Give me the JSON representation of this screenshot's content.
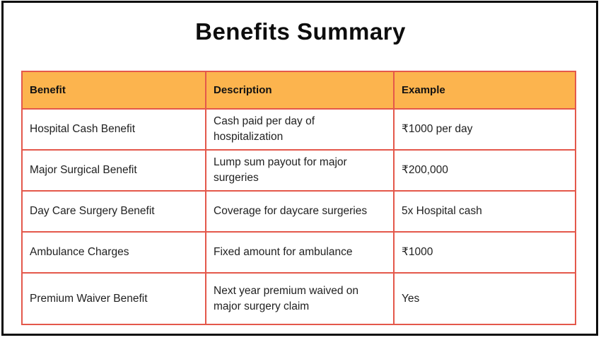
{
  "page": {
    "title": "Benefits Summary"
  },
  "table": {
    "columns": [
      "Benefit",
      "Description",
      "Example"
    ],
    "rows": [
      {
        "benefit": "Hospital Cash Benefit",
        "description": "Cash paid per day of hospitalization",
        "example": "₹1000 per day"
      },
      {
        "benefit": "Major Surgical Benefit",
        "description": "Lump sum payout for major surgeries",
        "example": "₹200,000"
      },
      {
        "benefit": "Day Care Surgery Benefit",
        "description": "Coverage for daycare surgeries",
        "example": "5x Hospital cash"
      },
      {
        "benefit": "Ambulance Charges",
        "description": "Fixed amount for ambulance",
        "example": "₹1000"
      },
      {
        "benefit": "Premium Waiver Benefit",
        "description": "Next year premium waived on major surgery claim",
        "example": "Yes"
      }
    ]
  },
  "colors": {
    "header_bg": "#fcb44e",
    "table_border": "#e4584b",
    "frame_border": "#0d0d0d",
    "title_text": "#0d0d0d",
    "body_text": "#212121"
  }
}
